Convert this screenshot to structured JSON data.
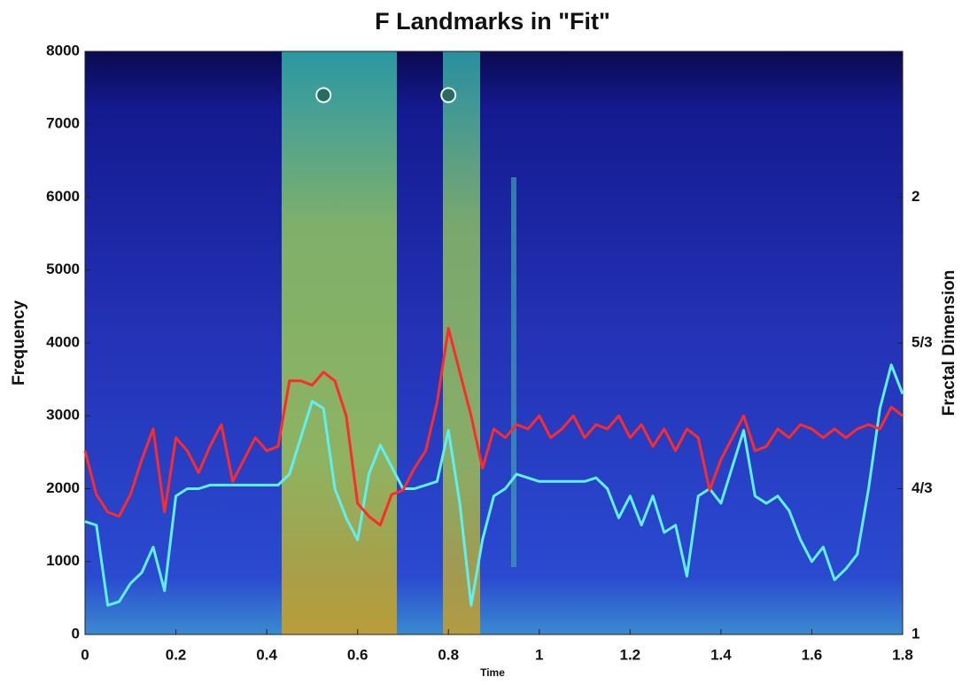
{
  "chart_data": {
    "type": "line",
    "title": "F Landmarks in \"Fit\"",
    "x_label": "Time",
    "y_label": "Frequency",
    "y2_label": "Fractal Dimension",
    "xlim": [
      0,
      1.8
    ],
    "xticks": [
      0,
      0.2,
      0.4,
      0.6,
      0.8,
      1,
      1.2,
      1.4,
      1.6,
      1.8
    ],
    "ylim": [
      0,
      8000
    ],
    "yticks": [
      0,
      1000,
      2000,
      3000,
      4000,
      5000,
      6000,
      7000,
      8000
    ],
    "y2lim": [
      1,
      2.3333
    ],
    "y2ticks": [
      1,
      {
        "value": 1.3333,
        "label": "4/3"
      },
      {
        "value": 1.6667,
        "label": "5/3"
      },
      2
    ],
    "x": [
      0,
      0.025,
      0.05,
      0.075,
      0.1,
      0.125,
      0.15,
      0.175,
      0.2,
      0.225,
      0.25,
      0.275,
      0.3,
      0.325,
      0.35,
      0.375,
      0.4,
      0.425,
      0.45,
      0.475,
      0.5,
      0.525,
      0.55,
      0.575,
      0.6,
      0.625,
      0.65,
      0.675,
      0.7,
      0.725,
      0.75,
      0.775,
      0.8,
      0.825,
      0.85,
      0.875,
      0.9,
      0.925,
      0.95,
      0.975,
      1,
      1.025,
      1.05,
      1.075,
      1.1,
      1.125,
      1.15,
      1.175,
      1.2,
      1.225,
      1.25,
      1.275,
      1.3,
      1.325,
      1.35,
      1.375,
      1.4,
      1.425,
      1.45,
      1.475,
      1.5,
      1.525,
      1.55,
      1.575,
      1.6,
      1.625,
      1.65,
      1.675,
      1.7,
      1.725,
      1.75,
      1.775,
      1.8
    ],
    "series": [
      {
        "color": "#5ff0f0",
        "axis": "y",
        "values": [
          1550,
          1500,
          400,
          450,
          700,
          850,
          1200,
          600,
          1900,
          2000,
          2000,
          2050,
          2050,
          2050,
          2050,
          2050,
          2050,
          2050,
          2200,
          2700,
          3200,
          3100,
          2000,
          1600,
          1300,
          2200,
          2600,
          2300,
          2000,
          2000,
          2050,
          2100,
          2800,
          1800,
          400,
          1300,
          1900,
          2000,
          2200,
          2150,
          2100,
          2100,
          2100,
          2100,
          2100,
          2150,
          2000,
          1600,
          1900,
          1500,
          1900,
          1400,
          1500,
          800,
          1900,
          2000,
          1800,
          2300,
          2800,
          1900,
          1800,
          1900,
          1700,
          1300,
          1000,
          1200,
          750,
          900,
          1100,
          2000,
          3100,
          3700,
          3300
        ]
      },
      {
        "color": "#ff2a2a",
        "axis": "y2",
        "values": [
          1.42,
          1.32,
          1.28,
          1.27,
          1.32,
          1.4,
          1.47,
          1.28,
          1.45,
          1.42,
          1.37,
          1.43,
          1.48,
          1.35,
          1.4,
          1.45,
          1.42,
          1.43,
          1.58,
          1.58,
          1.57,
          1.6,
          1.58,
          1.5,
          1.3,
          1.27,
          1.25,
          1.32,
          1.33,
          1.38,
          1.42,
          1.53,
          1.7,
          1.6,
          1.5,
          1.38,
          1.47,
          1.45,
          1.48,
          1.47,
          1.5,
          1.45,
          1.47,
          1.5,
          1.45,
          1.48,
          1.47,
          1.5,
          1.45,
          1.48,
          1.43,
          1.47,
          1.42,
          1.47,
          1.45,
          1.33,
          1.4,
          1.45,
          1.5,
          1.42,
          1.43,
          1.47,
          1.45,
          1.48,
          1.47,
          1.45,
          1.47,
          1.45,
          1.47,
          1.48,
          1.47,
          1.52,
          1.5
        ]
      }
    ],
    "landmarks": {
      "x": [
        0.525,
        0.8
      ],
      "y": [
        7400,
        7400
      ]
    }
  }
}
